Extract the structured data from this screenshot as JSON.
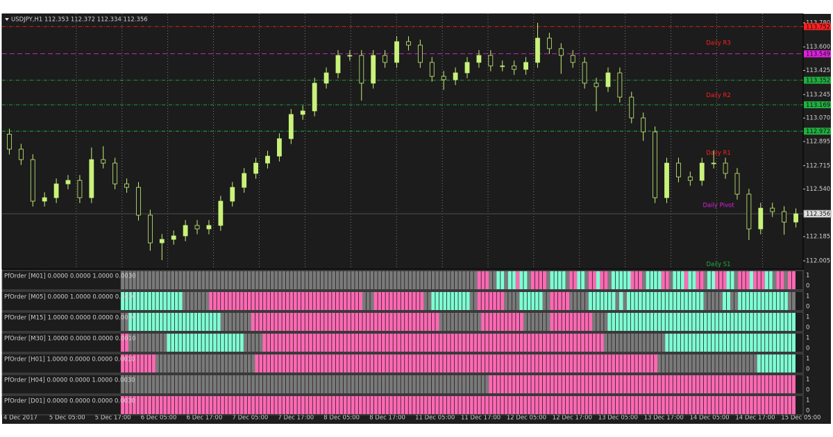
{
  "header": "USDJPY,H1  112.353 112.372 112.334 112.356",
  "chart_data": {
    "type": "candlestick",
    "color": "#c9f27a",
    "grid": true,
    "ylim": [
      111.943,
      113.847
    ],
    "yticks": [
      {
        "value": 113.78,
        "label": "113.780"
      },
      {
        "value": 113.6,
        "label": "113.600"
      },
      {
        "value": 113.425,
        "label": "113.425"
      },
      {
        "value": 113.245,
        "label": "113.245"
      },
      {
        "value": 113.07,
        "label": "113.070"
      },
      {
        "value": 112.895,
        "label": "112.895"
      },
      {
        "value": 112.715,
        "label": "112.715"
      },
      {
        "value": 112.54,
        "label": "112.540"
      },
      {
        "value": 112.185,
        "label": "112.185"
      },
      {
        "value": 112.005,
        "label": "112.005"
      }
    ],
    "x_labels": [
      "4 Dec 2017",
      "5 Dec 05:00",
      "5 Dec 17:00",
      "6 Dec 05:00",
      "6 Dec 17:00",
      "7 Dec 05:00",
      "7 Dec 17:00",
      "8 Dec 05:00",
      "8 Dec 17:00",
      "11 Dec 05:00",
      "11 Dec 17:00",
      "12 Dec 05:00",
      "12 Dec 17:00",
      "13 Dec 05:00",
      "13 Dec 17:00",
      "14 Dec 05:00",
      "14 Dec 17:00",
      "15 Dec 05:00"
    ],
    "open": [
      112.95,
      112.838,
      112.76,
      112.45,
      112.476,
      112.579,
      112.605,
      112.476,
      112.76,
      112.734,
      112.579,
      112.553,
      112.346,
      112.139,
      112.165,
      112.191,
      112.269,
      112.243,
      112.269,
      112.45,
      112.553,
      112.657,
      112.734,
      112.786,
      112.916,
      113.097,
      113.123,
      113.33,
      113.407,
      113.537,
      113.537,
      113.33,
      113.537,
      113.485,
      113.64,
      113.614,
      113.485,
      113.381,
      113.356,
      113.407,
      113.485,
      113.537,
      113.459,
      113.459,
      113.433,
      113.485,
      113.666,
      113.588,
      113.537,
      113.485,
      113.33,
      113.304,
      113.407,
      113.226,
      113.071,
      112.967,
      112.476,
      112.734,
      112.631,
      112.605,
      112.734,
      112.734,
      112.657,
      112.502,
      112.243,
      112.398,
      112.372,
      112.294
    ],
    "high": [
      112.99,
      112.878,
      112.8,
      112.516,
      112.619,
      112.645,
      112.645,
      112.85,
      112.86,
      112.774,
      112.619,
      112.593,
      112.386,
      112.205,
      112.231,
      112.309,
      112.309,
      112.309,
      112.49,
      112.593,
      112.697,
      112.774,
      112.826,
      112.956,
      113.137,
      113.163,
      113.37,
      113.447,
      113.577,
      113.577,
      113.577,
      113.577,
      113.577,
      113.68,
      113.68,
      113.654,
      113.525,
      113.421,
      113.447,
      113.525,
      113.577,
      113.577,
      113.499,
      113.499,
      113.525,
      113.78,
      113.706,
      113.628,
      113.577,
      113.525,
      113.37,
      113.447,
      113.447,
      113.266,
      113.111,
      113.007,
      112.774,
      112.774,
      112.671,
      112.774,
      112.83,
      112.774,
      112.697,
      112.542,
      112.438,
      112.438,
      112.412,
      112.396
    ],
    "low": [
      112.798,
      112.72,
      112.41,
      112.41,
      112.436,
      112.539,
      112.436,
      112.436,
      112.694,
      112.539,
      112.513,
      112.306,
      112.08,
      112.01,
      112.125,
      112.151,
      112.203,
      112.203,
      112.229,
      112.41,
      112.513,
      112.617,
      112.694,
      112.746,
      112.876,
      113.057,
      113.083,
      113.29,
      113.367,
      113.497,
      113.2,
      113.29,
      113.445,
      113.445,
      113.574,
      113.445,
      113.341,
      113.28,
      113.316,
      113.367,
      113.445,
      113.419,
      113.419,
      113.393,
      113.393,
      113.445,
      113.548,
      113.4,
      113.445,
      113.29,
      113.12,
      113.264,
      113.186,
      113.031,
      112.9,
      112.436,
      112.436,
      112.591,
      112.565,
      112.565,
      112.694,
      112.617,
      112.462,
      112.16,
      112.203,
      112.332,
      112.2,
      112.254
    ],
    "close": [
      112.838,
      112.76,
      112.45,
      112.476,
      112.579,
      112.605,
      112.476,
      112.76,
      112.734,
      112.579,
      112.553,
      112.346,
      112.139,
      112.165,
      112.191,
      112.269,
      112.243,
      112.269,
      112.45,
      112.553,
      112.657,
      112.734,
      112.786,
      112.916,
      113.097,
      113.123,
      113.33,
      113.407,
      113.537,
      113.537,
      113.33,
      113.537,
      113.485,
      113.64,
      113.614,
      113.485,
      113.381,
      113.356,
      113.407,
      113.485,
      113.537,
      113.459,
      113.459,
      113.433,
      113.485,
      113.666,
      113.588,
      113.537,
      113.485,
      113.33,
      113.304,
      113.407,
      113.226,
      113.071,
      112.967,
      112.476,
      112.734,
      112.631,
      112.605,
      112.734,
      112.734,
      112.657,
      112.502,
      112.243,
      112.398,
      112.372,
      112.294,
      112.356
    ],
    "levels": [
      {
        "value": 113.752,
        "label": "113.752",
        "color": "#ff2020"
      },
      {
        "value": 113.549,
        "label": "113.549",
        "color": "#e020e0"
      },
      {
        "value": 113.352,
        "label": "113.352",
        "color": "#20b040"
      },
      {
        "value": 113.169,
        "label": "113.169",
        "color": "#20b040"
      },
      {
        "value": 112.972,
        "label": "112.972",
        "color": "#20b040"
      }
    ],
    "current": {
      "value": 112.356,
      "label": "112.356",
      "color": "#a0a0a0"
    },
    "annotations": [
      {
        "text": "Daily R3",
        "value": 113.63,
        "color": "#ff2020"
      },
      {
        "text": "Daily R2",
        "value": 113.24,
        "color": "#ff2020"
      },
      {
        "text": "Daily R1",
        "value": 112.81,
        "color": "#ff2020"
      },
      {
        "text": "Daily Pivot",
        "value": 112.42,
        "color": "#e020e0"
      },
      {
        "text": "Daily S1",
        "value": 111.98,
        "color": "#20b040"
      }
    ]
  },
  "state_colors": {
    "gray": "#7a7a7a",
    "aqua": "#7fffd4",
    "pink": "#ff69b4"
  },
  "panes": [
    {
      "title": "PfOrder [M01] 0.0000 0.0000 1.0000 0.0030",
      "yticks": [
        1,
        0
      ],
      "start": 31,
      "runs": [
        [
          "gray",
          93
        ],
        [
          "pink",
          3
        ],
        [
          "gray",
          2
        ],
        [
          "aqua",
          2
        ],
        [
          "gray",
          1
        ],
        [
          "aqua",
          2
        ],
        [
          "pink",
          1
        ],
        [
          "aqua",
          2
        ],
        [
          "gray",
          1
        ],
        [
          "pink",
          4
        ],
        [
          "gray",
          1
        ],
        [
          "aqua",
          4
        ],
        [
          "gray",
          1
        ],
        [
          "pink",
          2
        ],
        [
          "aqua",
          2
        ],
        [
          "gray",
          1
        ],
        [
          "pink",
          2
        ],
        [
          "aqua",
          1
        ],
        [
          "pink",
          2
        ],
        [
          "gray",
          1
        ],
        [
          "aqua",
          5
        ],
        [
          "pink",
          3
        ],
        [
          "gray",
          1
        ],
        [
          "aqua",
          4
        ],
        [
          "pink",
          2
        ],
        [
          "gray",
          1
        ],
        [
          "aqua",
          3
        ],
        [
          "pink",
          1
        ],
        [
          "aqua",
          2
        ],
        [
          "pink",
          2
        ],
        [
          "gray",
          1
        ],
        [
          "aqua",
          2
        ],
        [
          "pink",
          3
        ],
        [
          "aqua",
          2
        ],
        [
          "gray",
          1
        ],
        [
          "pink",
          3
        ],
        [
          "aqua",
          1
        ],
        [
          "pink",
          3
        ],
        [
          "aqua",
          2
        ],
        [
          "gray",
          1
        ],
        [
          "pink",
          2
        ],
        [
          "gray",
          1
        ],
        [
          "pink",
          2
        ]
      ]
    },
    {
      "title": "PfOrder [M05] 0.0000 1.0000 0.0000 0.0020",
      "yticks": [
        1,
        0
      ],
      "start": 31,
      "runs": [
        [
          "aqua",
          16
        ],
        [
          "gray",
          7
        ],
        [
          "pink",
          40
        ],
        [
          "gray",
          3
        ],
        [
          "pink",
          13
        ],
        [
          "gray",
          2
        ],
        [
          "aqua",
          10
        ],
        [
          "gray",
          2
        ],
        [
          "pink",
          7
        ],
        [
          "gray",
          4
        ],
        [
          "aqua",
          6
        ],
        [
          "gray",
          2
        ],
        [
          "pink",
          5
        ],
        [
          "gray",
          5
        ],
        [
          "aqua",
          7
        ],
        [
          "gray",
          1
        ],
        [
          "aqua",
          1
        ],
        [
          "gray",
          1
        ],
        [
          "aqua",
          20
        ],
        [
          "gray",
          5
        ],
        [
          "aqua",
          2
        ],
        [
          "gray",
          2
        ],
        [
          "aqua",
          13
        ],
        [
          "gray",
          2
        ]
      ]
    },
    {
      "title": "PfOrder [M15] 1.0000 0.0000 0.0000 0.0010",
      "yticks": [
        1,
        0
      ],
      "start": 31,
      "runs": [
        [
          "gray",
          2
        ],
        [
          "aqua",
          24
        ],
        [
          "gray",
          8
        ],
        [
          "pink",
          49
        ],
        [
          "gray",
          11
        ],
        [
          "pink",
          11
        ],
        [
          "gray",
          7
        ],
        [
          "pink",
          11
        ],
        [
          "gray",
          4
        ],
        [
          "aqua",
          49
        ]
      ]
    },
    {
      "title": "PfOrder [M30] 1.0000 0.0000 0.0000 0.0010",
      "yticks": [
        1,
        0
      ],
      "start": 31,
      "runs": [
        [
          "pink",
          2
        ],
        [
          "gray",
          10
        ],
        [
          "aqua",
          20
        ],
        [
          "gray",
          5
        ],
        [
          "pink",
          89
        ],
        [
          "gray",
          16
        ],
        [
          "aqua",
          34
        ]
      ]
    },
    {
      "title": "PfOrder [H01] 1.0000 0.0000 0.0000 0.0010",
      "yticks": [
        1,
        0
      ],
      "start": 31,
      "runs": [
        [
          "pink",
          9
        ],
        [
          "gray",
          26
        ],
        [
          "pink",
          105
        ],
        [
          "gray",
          26
        ],
        [
          "aqua",
          10
        ]
      ]
    },
    {
      "title": "PfOrder [H04] 0.0000 0.0000 1.0000 0.0030",
      "yticks": [
        1,
        0
      ],
      "start": 31,
      "runs": [
        [
          "gray",
          96
        ],
        [
          "pink",
          80
        ]
      ]
    },
    {
      "title": "PfOrder [D01] 0.0000 0.0000 0.0000 0.0030",
      "yticks": [
        1,
        0
      ],
      "start": 31,
      "runs": [
        [
          "pink",
          176
        ]
      ]
    }
  ]
}
